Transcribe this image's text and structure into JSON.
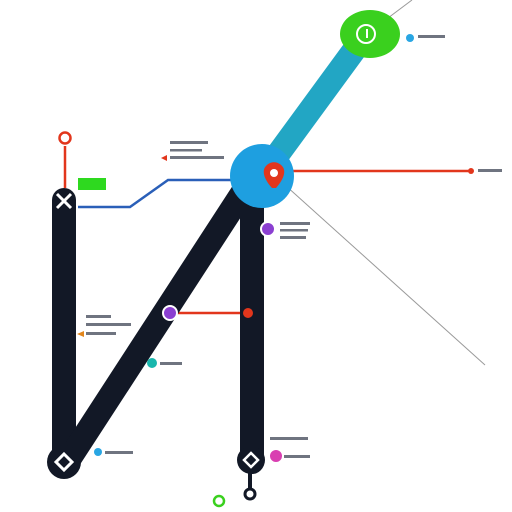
{
  "colors": {
    "background": "#ffffff",
    "dark_line": "#121826",
    "teal_line": "#22a6c4",
    "blue_hub": "#1e9fe0",
    "blue_connector": "#2a5fb8",
    "red_line": "#e2361c",
    "green_node": "#3ad01e",
    "green_bar": "#2ed91f",
    "purple_marker": "#8b3fd1",
    "magenta_marker": "#d93fb1",
    "teal_dot": "#19b7ad",
    "sky_dot": "#29a6e3",
    "gray_line": "#9a9a9a",
    "label_gray": "#6f7480"
  },
  "icons": {
    "top_node": "circle-icon",
    "top_left_node": "close-icon",
    "bottom_left_node": "diamond-icon",
    "bottom_mid_node": "diamond-icon",
    "pin": "location-pin-icon"
  }
}
